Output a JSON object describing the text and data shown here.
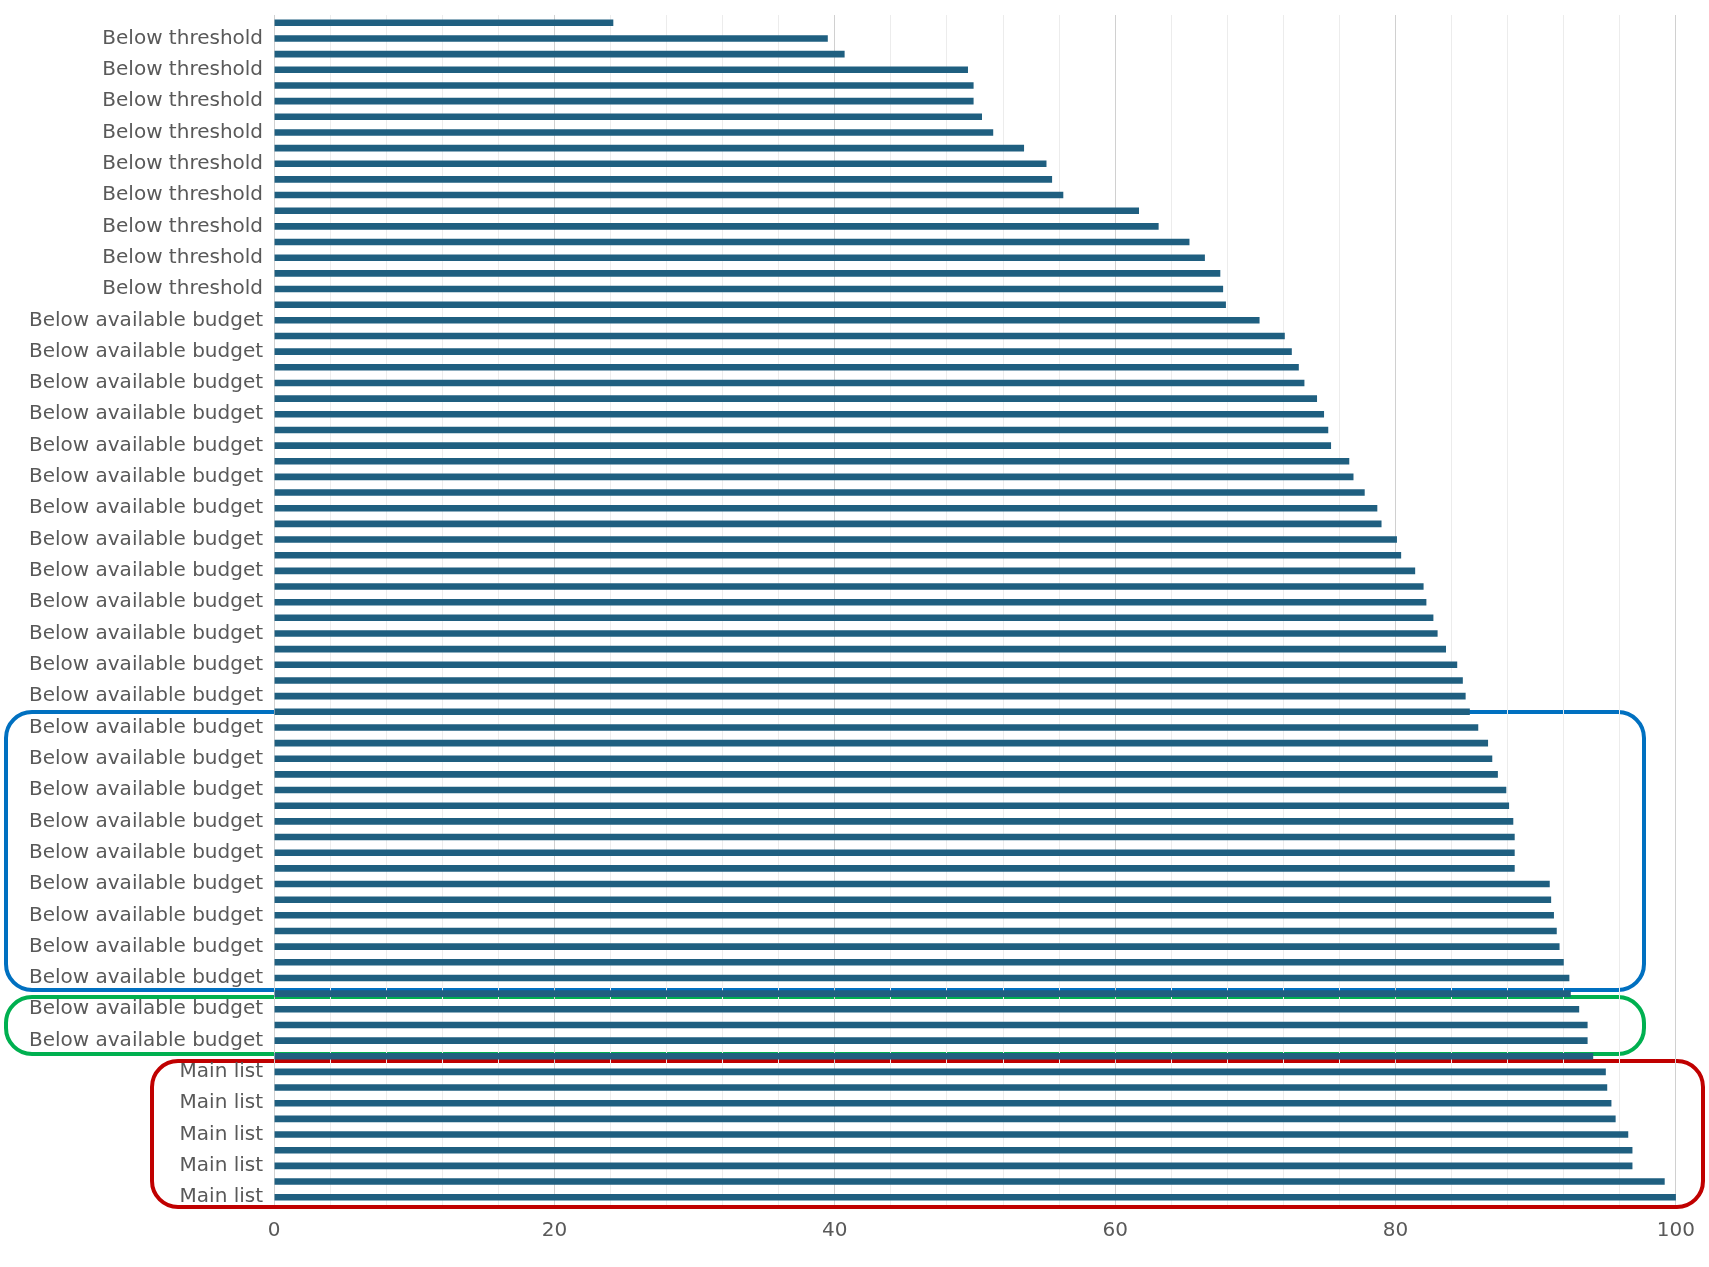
{
  "chart_data": {
    "type": "bar",
    "orientation": "horizontal",
    "categories": [
      null,
      "Below threshold",
      null,
      "Below threshold",
      null,
      "Below threshold",
      null,
      "Below threshold",
      null,
      "Below threshold",
      null,
      "Below threshold",
      null,
      "Below threshold",
      null,
      "Below threshold",
      null,
      "Below threshold",
      null,
      "Below available budget",
      null,
      "Below available budget",
      null,
      "Below available budget",
      null,
      "Below available budget",
      null,
      "Below available budget",
      null,
      "Below available budget",
      null,
      "Below available budget",
      null,
      "Below available budget",
      null,
      "Below available budget",
      null,
      "Below available budget",
      null,
      "Below available budget",
      null,
      "Below available budget",
      null,
      "Below available budget",
      null,
      "Below available budget",
      null,
      "Below available budget",
      null,
      "Below available budget",
      null,
      "Below available budget",
      null,
      "Below available budget",
      null,
      "Below available budget",
      null,
      "Below available budget",
      null,
      "Below available budget",
      null,
      "Below available budget",
      null,
      "Below available budget",
      null,
      "Below available budget",
      null,
      "Main list",
      null,
      "Main list",
      null,
      "Main list",
      null,
      "Main list",
      null,
      "Main list"
    ],
    "values": [
      24.2,
      39.5,
      40.7,
      49.5,
      49.9,
      49.9,
      50.5,
      51.3,
      53.5,
      55.1,
      55.5,
      56.3,
      61.7,
      63.1,
      65.3,
      66.4,
      67.5,
      67.7,
      67.9,
      70.3,
      72.1,
      72.6,
      73.1,
      73.5,
      74.4,
      74.9,
      75.2,
      75.4,
      76.7,
      77.0,
      77.8,
      78.7,
      79.0,
      80.1,
      80.4,
      81.4,
      82.0,
      82.2,
      82.7,
      83.0,
      83.6,
      84.4,
      84.8,
      85.0,
      85.3,
      85.9,
      86.6,
      86.9,
      87.3,
      87.9,
      88.1,
      88.4,
      88.5,
      88.5,
      88.5,
      91.0,
      91.1,
      91.3,
      91.5,
      91.7,
      92.0,
      92.4,
      92.5,
      93.1,
      93.7,
      93.7,
      94.1,
      95.0,
      95.1,
      95.4,
      95.7,
      96.6,
      96.9,
      96.9,
      99.2,
      100
    ],
    "color": "#1f5f80",
    "xlim": [
      0,
      100
    ],
    "xticks": [
      0,
      {
        "value": 4,
        "label": null
      },
      {
        "value": 8,
        "label": null
      },
      {
        "value": 12,
        "label": null
      },
      {
        "value": 16,
        "label": null
      },
      20,
      {
        "value": 24,
        "label": null
      },
      {
        "value": 28,
        "label": null
      },
      {
        "value": 32,
        "label": null
      },
      {
        "value": 36,
        "label": null
      },
      40,
      {
        "value": 44,
        "label": null
      },
      {
        "value": 48,
        "label": null
      },
      {
        "value": 52,
        "label": null
      },
      {
        "value": 56,
        "label": null
      },
      60,
      {
        "value": 64,
        "label": null
      },
      {
        "value": 68,
        "label": null
      },
      {
        "value": 72,
        "label": null
      },
      {
        "value": 76,
        "label": null
      },
      80,
      {
        "value": 84,
        "label": null
      },
      {
        "value": 88,
        "label": null
      },
      {
        "value": 92,
        "label": null
      },
      {
        "value": 96,
        "label": null
      },
      100
    ],
    "grid": "x",
    "legend": false
  }
}
